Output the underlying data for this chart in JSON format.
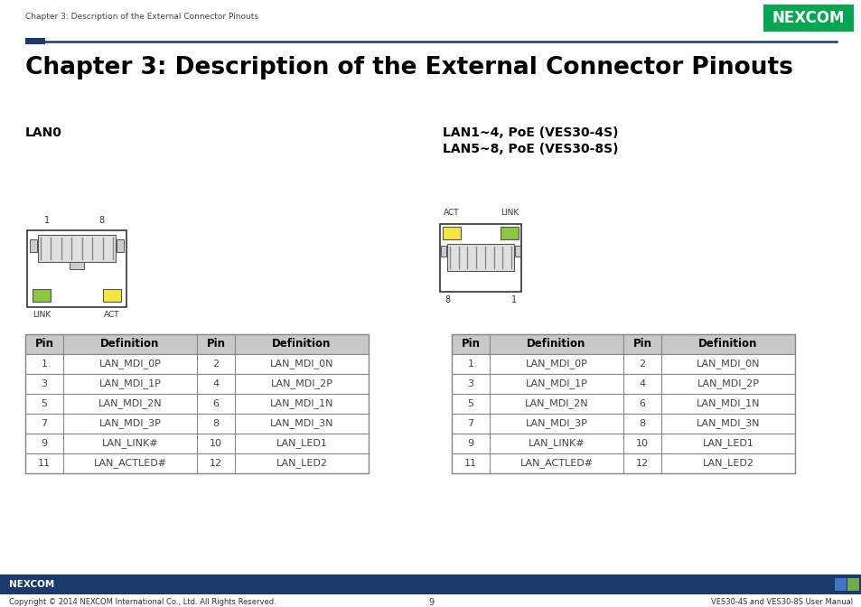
{
  "page_header": "Chapter 3: Description of the External Connector Pinouts",
  "chapter_title": "Chapter 3: Description of the External Connector Pinouts",
  "section_left": "LAN0",
  "section_right": "LAN1~4, PoE (VES30-4S)\nLAN5~8, PoE (VES30-8S)",
  "table_headers": [
    "Pin",
    "Definition",
    "Pin",
    "Definition"
  ],
  "table_rows": [
    [
      "1",
      "LAN_MDI_0P",
      "2",
      "LAN_MDI_0N"
    ],
    [
      "3",
      "LAN_MDI_1P",
      "4",
      "LAN_MDI_2P"
    ],
    [
      "5",
      "LAN_MDI_2N",
      "6",
      "LAN_MDI_1N"
    ],
    [
      "7",
      "LAN_MDI_3P",
      "8",
      "LAN_MDI_3N"
    ],
    [
      "9",
      "LAN_LINK#",
      "10",
      "LAN_LED1"
    ],
    [
      "11",
      "LAN_ACTLED#",
      "12",
      "LAN_LED2"
    ]
  ],
  "footer_left": "Copyright © 2014 NEXCOM International Co., Ltd. All Rights Reserved.",
  "footer_center": "9",
  "footer_right": "VES30-4S and VES30-8S User Manual",
  "nexcom_green": "#00a650",
  "nexcom_blue": "#1a3a6b",
  "led_green": "#8dc63f",
  "led_yellow": "#f5e642",
  "table_header_bg": "#c8c8c8",
  "table_border_color": "#888888"
}
